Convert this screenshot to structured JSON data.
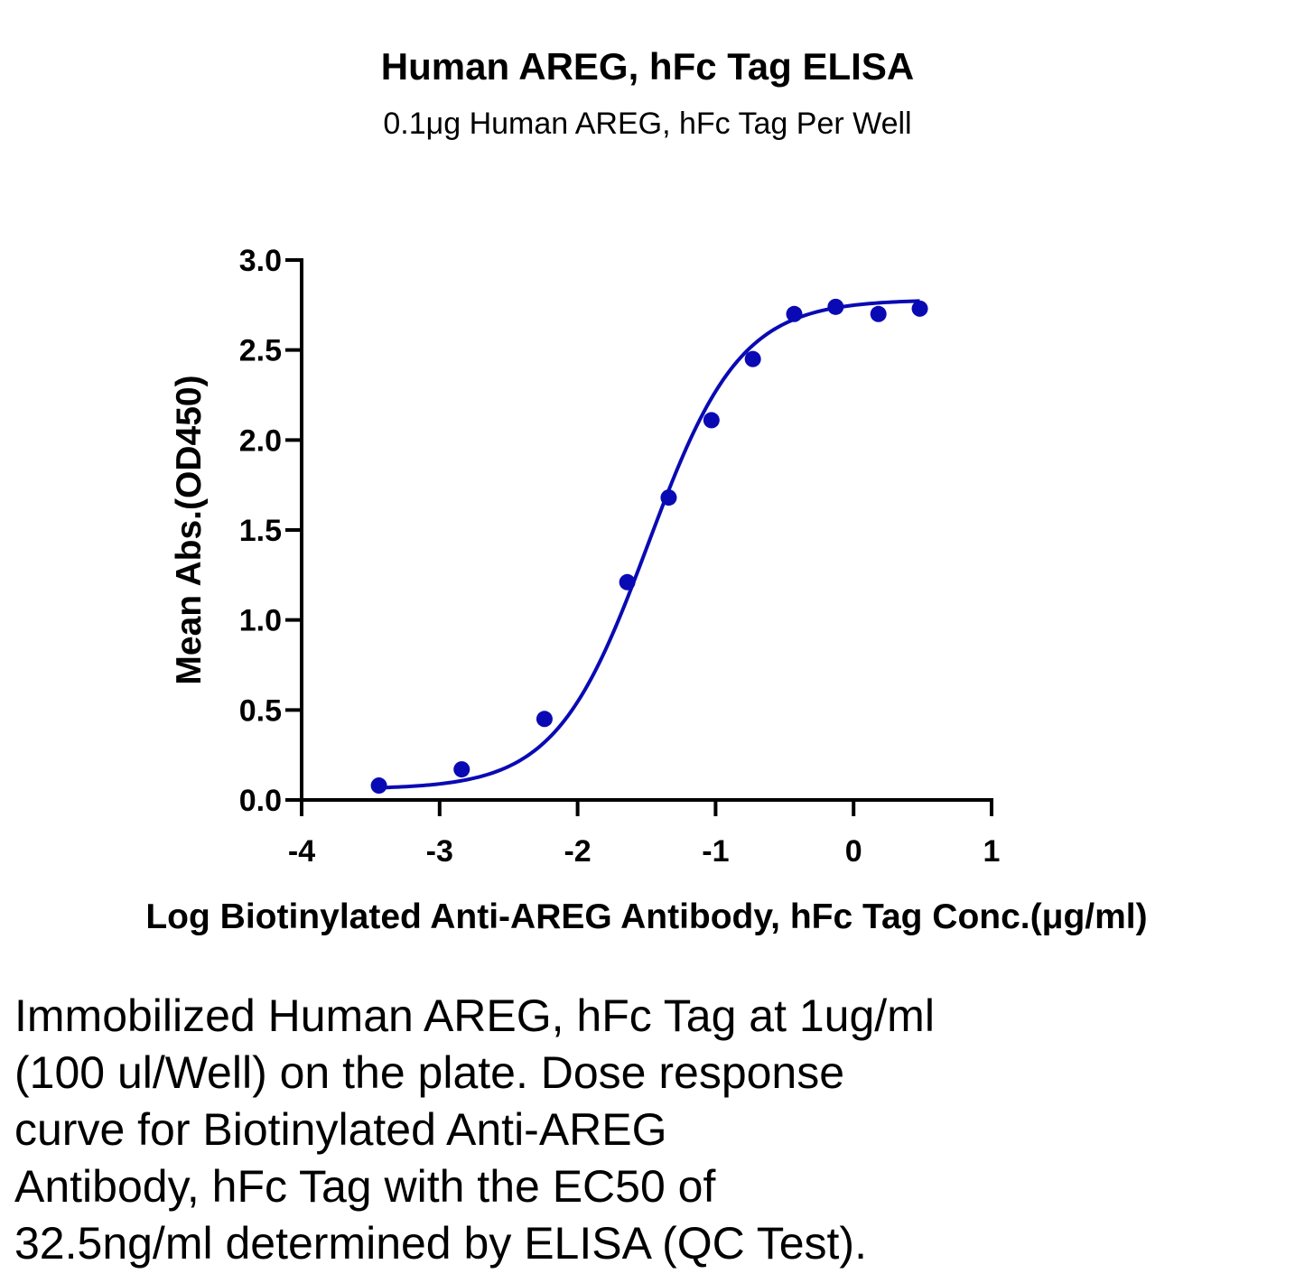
{
  "chart_data": {
    "type": "scatter",
    "title": "Human AREG, hFc Tag ELISA",
    "subtitle": "0.1μg Human AREG, hFc Tag Per Well",
    "xlabel": "Log Biotinylated Anti-AREG Antibody, hFc Tag Conc.(μg/ml)",
    "ylabel": "Mean Abs.(OD450)",
    "xlim": [
      -4,
      1
    ],
    "ylim": [
      0,
      3.0
    ],
    "x_ticks": [
      "-4",
      "-3",
      "-2",
      "-1",
      "0",
      "1"
    ],
    "y_ticks": [
      "0.0",
      "0.5",
      "1.0",
      "1.5",
      "2.0",
      "2.5",
      "3.0"
    ],
    "grid": false,
    "color": "#0a0ab4",
    "series": [
      {
        "points": [
          {
            "x": -3.44,
            "y": 0.08
          },
          {
            "x": -2.84,
            "y": 0.17
          },
          {
            "x": -2.24,
            "y": 0.45
          },
          {
            "x": -1.64,
            "y": 1.21
          },
          {
            "x": -1.34,
            "y": 1.68
          },
          {
            "x": -1.03,
            "y": 2.11
          },
          {
            "x": -0.73,
            "y": 2.45
          },
          {
            "x": -0.43,
            "y": 2.7
          },
          {
            "x": -0.13,
            "y": 2.74
          },
          {
            "x": 0.18,
            "y": 2.7
          },
          {
            "x": 0.48,
            "y": 2.73
          }
        ],
        "fit": {
          "model": "4PL",
          "bottom": 0.06,
          "top": 2.78,
          "logEC50": -1.49,
          "hill": 1.3
        }
      }
    ]
  },
  "caption": {
    "lines": [
      "Immobilized Human AREG, hFc Tag at 1ug/ml",
      "(100 ul/Well) on the plate. Dose response",
      "curve for Biotinylated Anti-AREG",
      "Antibody, hFc Tag with the EC50 of",
      "32.5ng/ml determined by ELISA (QC Test)."
    ]
  }
}
